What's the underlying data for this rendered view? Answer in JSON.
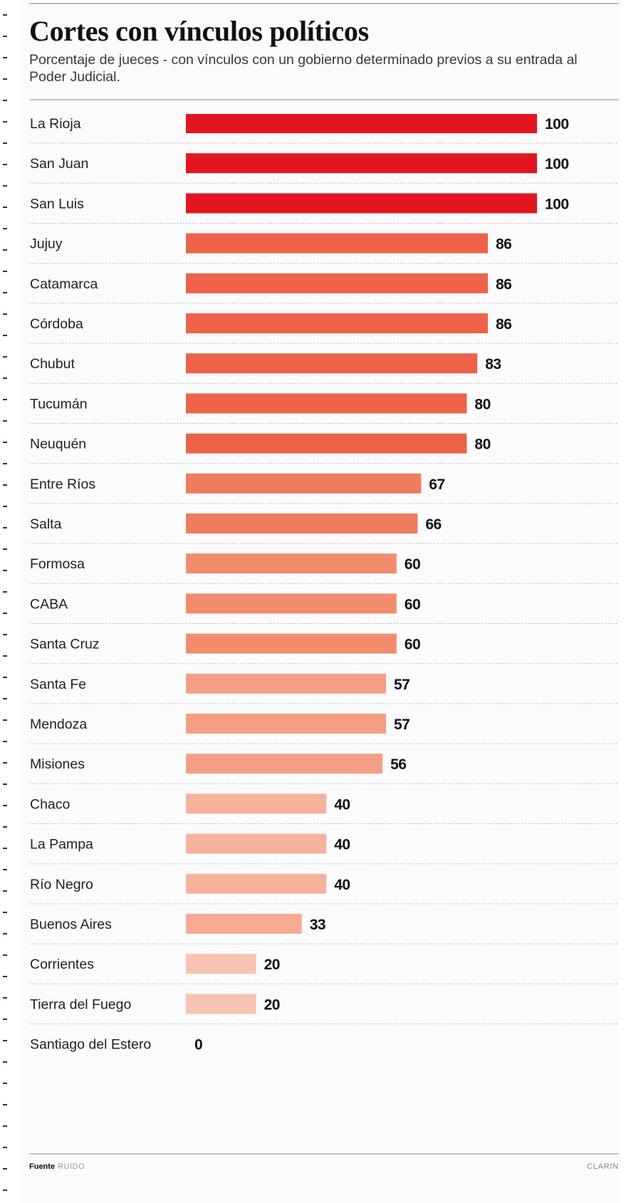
{
  "title": "Cortes con vínculos políticos",
  "subtitle": "Porcentaje de jueces - con vínculos con un gobierno determinado previos a su entrada al Poder Judicial.",
  "footer": {
    "source_label": "Fuente",
    "source": "RUIDO",
    "credit": "CLARIN"
  },
  "chart_data": {
    "type": "bar",
    "orientation": "horizontal",
    "categories": [
      "La Rioja",
      "San Juan",
      "San Luis",
      "Jujuy",
      "Catamarca",
      "Córdoba",
      "Chubut",
      "Tucumán",
      "Neuquén",
      "Entre Ríos",
      "Salta",
      "Formosa",
      "CABA",
      "Santa Cruz",
      "Santa Fe",
      "Mendoza",
      "Misiones",
      "Chaco",
      "La Pampa",
      "Río Negro",
      "Buenos Aires",
      "Corrientes",
      "Tierra del Fuego",
      "Santiago del Estero"
    ],
    "values": [
      100,
      100,
      100,
      86,
      86,
      86,
      83,
      80,
      80,
      67,
      66,
      60,
      60,
      60,
      57,
      57,
      56,
      40,
      40,
      40,
      33,
      20,
      20,
      0
    ],
    "xlim": [
      0,
      100
    ],
    "data_labels": true,
    "grid": false
  }
}
